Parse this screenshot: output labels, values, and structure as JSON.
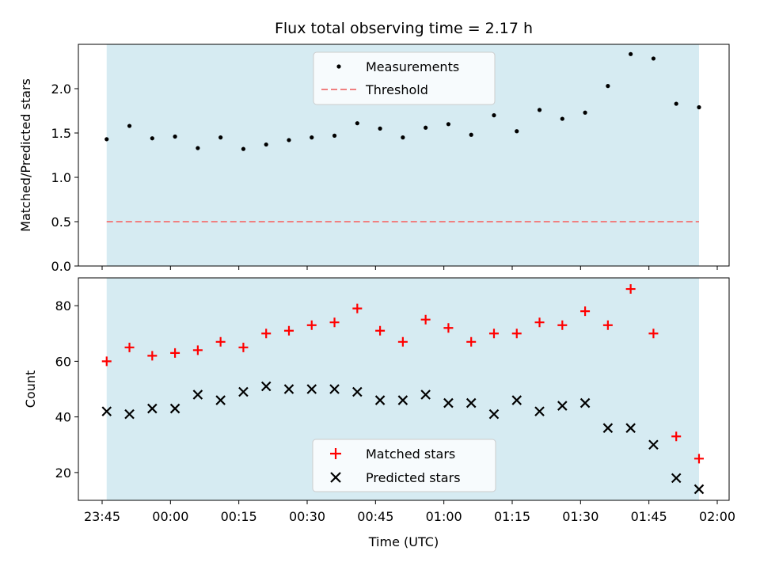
{
  "title": "Flux total observing time = 2.17 h",
  "chart_data": [
    {
      "type": "scatter",
      "ylabel": "Matched/Predicted stars",
      "ylim": [
        0,
        2.5
      ],
      "yticks": [
        "0.0",
        "0.5",
        "1.0",
        "1.5",
        "2.0"
      ],
      "threshold": 0.5,
      "shaded_span": [
        "23:46",
        "01:56"
      ],
      "legend": {
        "placement": "top-center",
        "entries": [
          "Measurements",
          "Threshold"
        ]
      },
      "colors": {
        "points": "#000000",
        "threshold": "#f08080",
        "span": "#add8e6"
      },
      "x": [
        "23:46",
        "23:51",
        "23:56",
        "00:01",
        "00:06",
        "00:11",
        "00:16",
        "00:21",
        "00:26",
        "00:31",
        "00:36",
        "00:41",
        "00:46",
        "00:51",
        "00:56",
        "01:01",
        "01:06",
        "01:11",
        "01:16",
        "01:21",
        "01:26",
        "01:31",
        "01:36",
        "01:41",
        "01:46",
        "01:51",
        "01:56"
      ],
      "series": [
        {
          "name": "Measurements",
          "values": [
            1.43,
            1.58,
            1.44,
            1.46,
            1.33,
            1.45,
            1.32,
            1.37,
            1.42,
            1.45,
            1.47,
            1.61,
            1.55,
            1.45,
            1.56,
            1.6,
            1.48,
            1.7,
            1.52,
            1.76,
            1.66,
            1.73,
            2.03,
            2.39,
            2.34,
            1.83,
            1.79
          ]
        }
      ]
    },
    {
      "type": "scatter",
      "xlabel": "Time (UTC)",
      "ylabel": "Count",
      "ylim": [
        10,
        90
      ],
      "yticks": [
        "20",
        "40",
        "60",
        "80"
      ],
      "xticks": [
        "23:45",
        "00:00",
        "00:15",
        "00:30",
        "00:45",
        "01:00",
        "01:15",
        "01:30",
        "01:45",
        "02:00"
      ],
      "shaded_span": [
        "23:46",
        "01:56"
      ],
      "legend": {
        "placement": "bottom-center",
        "entries": [
          "Matched stars",
          "Predicted stars"
        ]
      },
      "colors": {
        "matched": "#ff0000",
        "predicted": "#000000",
        "span": "#add8e6"
      },
      "x": [
        "23:46",
        "23:51",
        "23:56",
        "00:01",
        "00:06",
        "00:11",
        "00:16",
        "00:21",
        "00:26",
        "00:31",
        "00:36",
        "00:41",
        "00:46",
        "00:51",
        "00:56",
        "01:01",
        "01:06",
        "01:11",
        "01:16",
        "01:21",
        "01:26",
        "01:31",
        "01:36",
        "01:41",
        "01:46",
        "01:51",
        "01:56"
      ],
      "series": [
        {
          "name": "Matched stars",
          "values": [
            60,
            65,
            62,
            63,
            64,
            67,
            65,
            70,
            71,
            73,
            74,
            79,
            71,
            67,
            75,
            72,
            67,
            70,
            70,
            74,
            73,
            78,
            73,
            86,
            70,
            33,
            25
          ]
        },
        {
          "name": "Predicted stars",
          "values": [
            42,
            41,
            43,
            43,
            48,
            46,
            49,
            51,
            50,
            50,
            50,
            49,
            46,
            46,
            48,
            45,
            45,
            41,
            46,
            42,
            44,
            45,
            36,
            36,
            30,
            18,
            14
          ]
        }
      ]
    }
  ]
}
